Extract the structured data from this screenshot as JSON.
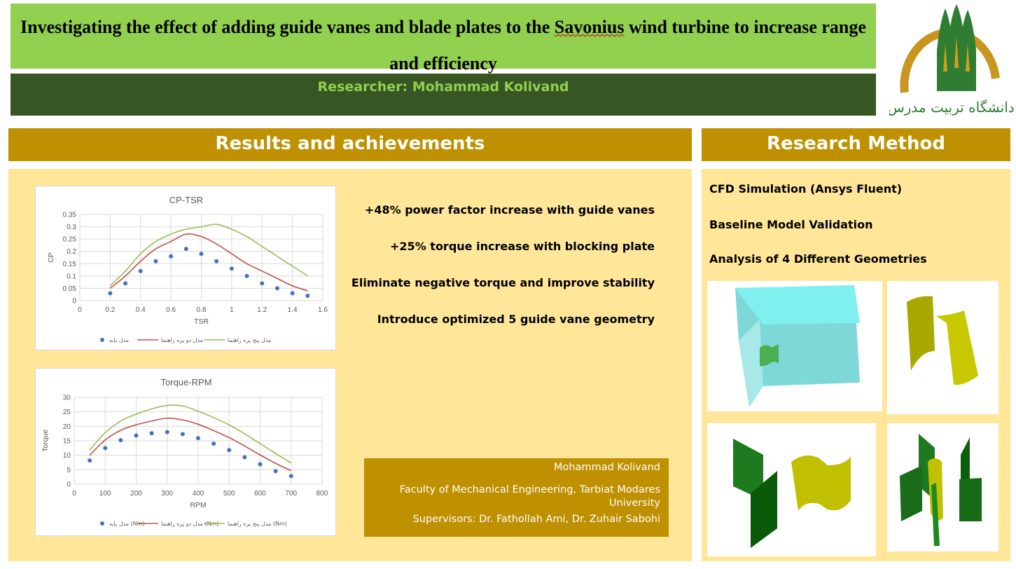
{
  "header": {
    "title_part1": "Investigating the effect of adding guide vanes and blade plates to the ",
    "title_underlined": "Savonius",
    "title_part2": " wind turbine to increase range and efficiency",
    "researcher": "Researcher: Mohammad Kolivand",
    "logo_text": "دانشگاه تربیت مدرس"
  },
  "colors": {
    "title_band": "#92d050",
    "researcher_band": "#375623",
    "section_header": "#bf9000",
    "panel": "#ffe699",
    "series_base": "#4472c4",
    "series_two_vane": "#c0504d",
    "series_five_vane": "#9bbb59"
  },
  "results": {
    "heading": "Results and achievements",
    "findings": [
      "+48% power factor increase with guide vanes",
      "+25% torque increase with blocking plate",
      "Eliminate negative torque and improve stability",
      "Introduce optimized 5 guide vane geometry"
    ],
    "info": {
      "name": "Mohammad Kolivand",
      "affiliation": "Faculty of Mechanical Engineering, Tarbiat Modares University",
      "supervisors": "Supervisors: Dr. Fathollah Ami, Dr. Zuhair Sabohi"
    }
  },
  "method": {
    "heading": "Research Method",
    "items": [
      "CFD Simulation (Ansys Fluent)",
      "Baseline Model Validation",
      "Analysis of 4 Different Geometries"
    ]
  },
  "chart_data": [
    {
      "type": "line",
      "title": "CP-TSR",
      "xlabel": "TSR",
      "ylabel": "CP",
      "xlim": [
        0,
        1.6
      ],
      "ylim": [
        0,
        0.35
      ],
      "xticks": [
        "0",
        "0.2",
        "0.4",
        "0.6",
        "0.8",
        "1",
        "1.2",
        "1.4",
        "1.6"
      ],
      "yticks": [
        "0",
        "0.05",
        "0.1",
        "0.15",
        "0.2",
        "0.25",
        "0.3",
        "0.35"
      ],
      "grid": true,
      "legend": "bottom",
      "x": [
        0.2,
        0.3,
        0.4,
        0.5,
        0.6,
        0.7,
        0.8,
        0.9,
        1.0,
        1.1,
        1.2,
        1.3,
        1.4,
        1.5
      ],
      "series": [
        {
          "name": "مدل پایه",
          "style": "scatter",
          "color": "#4472c4",
          "values": [
            0.03,
            0.07,
            0.12,
            0.16,
            0.18,
            0.21,
            0.19,
            0.16,
            0.13,
            0.1,
            0.07,
            0.05,
            0.03,
            0.02
          ]
        },
        {
          "name": "مدل دو پره راهنما",
          "style": "line",
          "color": "#c0504d",
          "values": [
            0.05,
            0.1,
            0.16,
            0.21,
            0.24,
            0.27,
            0.26,
            0.23,
            0.19,
            0.15,
            0.12,
            0.09,
            0.06,
            0.04
          ]
        },
        {
          "name": "مدل پنج پره راهنما",
          "style": "line",
          "color": "#9bbb59",
          "values": [
            0.06,
            0.12,
            0.19,
            0.24,
            0.27,
            0.29,
            0.3,
            0.31,
            0.29,
            0.26,
            0.22,
            0.18,
            0.14,
            0.1
          ]
        }
      ]
    },
    {
      "type": "line",
      "title": "Torque-RPM",
      "xlabel": "RPM",
      "ylabel": "Torque",
      "xlim": [
        0,
        800
      ],
      "ylim": [
        0,
        30
      ],
      "xticks": [
        "0",
        "100",
        "200",
        "300",
        "400",
        "500",
        "600",
        "700",
        "800"
      ],
      "yticks": [
        "0",
        "5",
        "10",
        "15",
        "20",
        "25",
        "30"
      ],
      "grid": true,
      "legend": "bottom",
      "x": [
        50,
        100,
        150,
        200,
        250,
        300,
        350,
        400,
        450,
        500,
        550,
        600,
        650,
        700
      ],
      "series": [
        {
          "name": "مدل پایه (Nm)",
          "style": "scatter",
          "color": "#4472c4",
          "values": [
            8.2,
            12.5,
            15.2,
            16.8,
            17.6,
            18.0,
            17.3,
            15.9,
            14.0,
            11.8,
            9.3,
            6.9,
            4.5,
            2.8
          ]
        },
        {
          "name": "مدل دو پره راهنما (Nm)",
          "style": "line",
          "color": "#c0504d",
          "values": [
            10.0,
            15.3,
            18.6,
            20.5,
            21.8,
            22.8,
            22.2,
            20.7,
            18.5,
            16.1,
            13.2,
            10.1,
            7.2,
            4.7
          ]
        },
        {
          "name": "مدل پنج پره راهنما (Nm)",
          "style": "line",
          "color": "#9bbb59",
          "values": [
            11.8,
            17.8,
            21.8,
            24.2,
            26.0,
            27.2,
            27.0,
            25.2,
            23.0,
            20.5,
            17.4,
            14.0,
            10.6,
            7.3
          ]
        }
      ]
    }
  ]
}
